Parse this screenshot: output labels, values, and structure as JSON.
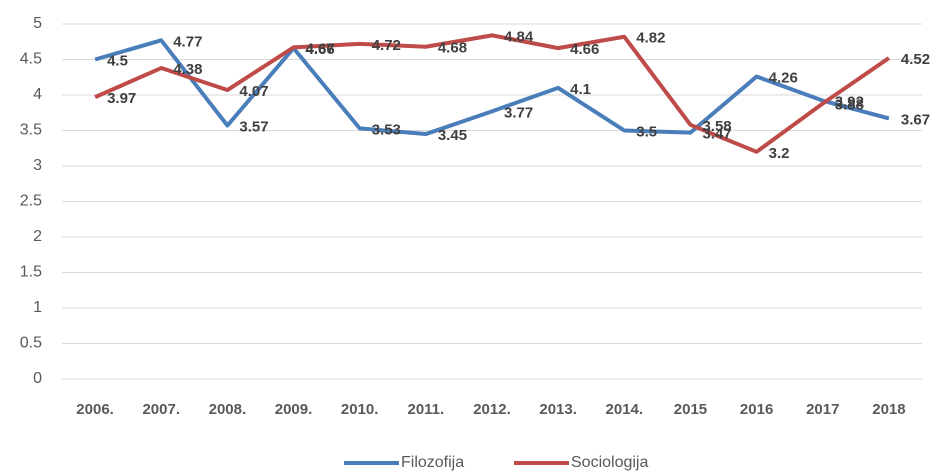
{
  "chart_data": {
    "type": "line",
    "categories": [
      "2006.",
      "2007.",
      "2008.",
      "2009.",
      "2010.",
      "2011.",
      "2012.",
      "2013.",
      "2014.",
      "2015",
      "2016",
      "2017",
      "2018"
    ],
    "series": [
      {
        "name": "Filozofija",
        "color": "#4a7ebb",
        "values": [
          4.5,
          4.77,
          3.57,
          4.66,
          3.53,
          3.45,
          3.77,
          4.1,
          3.5,
          3.47,
          4.26,
          3.92,
          3.67
        ]
      },
      {
        "name": "Sociologija",
        "color": "#be4b48",
        "values": [
          3.97,
          4.38,
          4.07,
          4.67,
          4.72,
          4.68,
          4.84,
          4.66,
          4.82,
          3.58,
          3.2,
          3.88,
          4.52
        ]
      }
    ],
    "ylim": [
      0,
      5
    ],
    "yticks": [
      0,
      0.5,
      1,
      1.5,
      2,
      2.5,
      3,
      3.5,
      4,
      4.5,
      5
    ],
    "grid": true,
    "legend": "bottom"
  }
}
